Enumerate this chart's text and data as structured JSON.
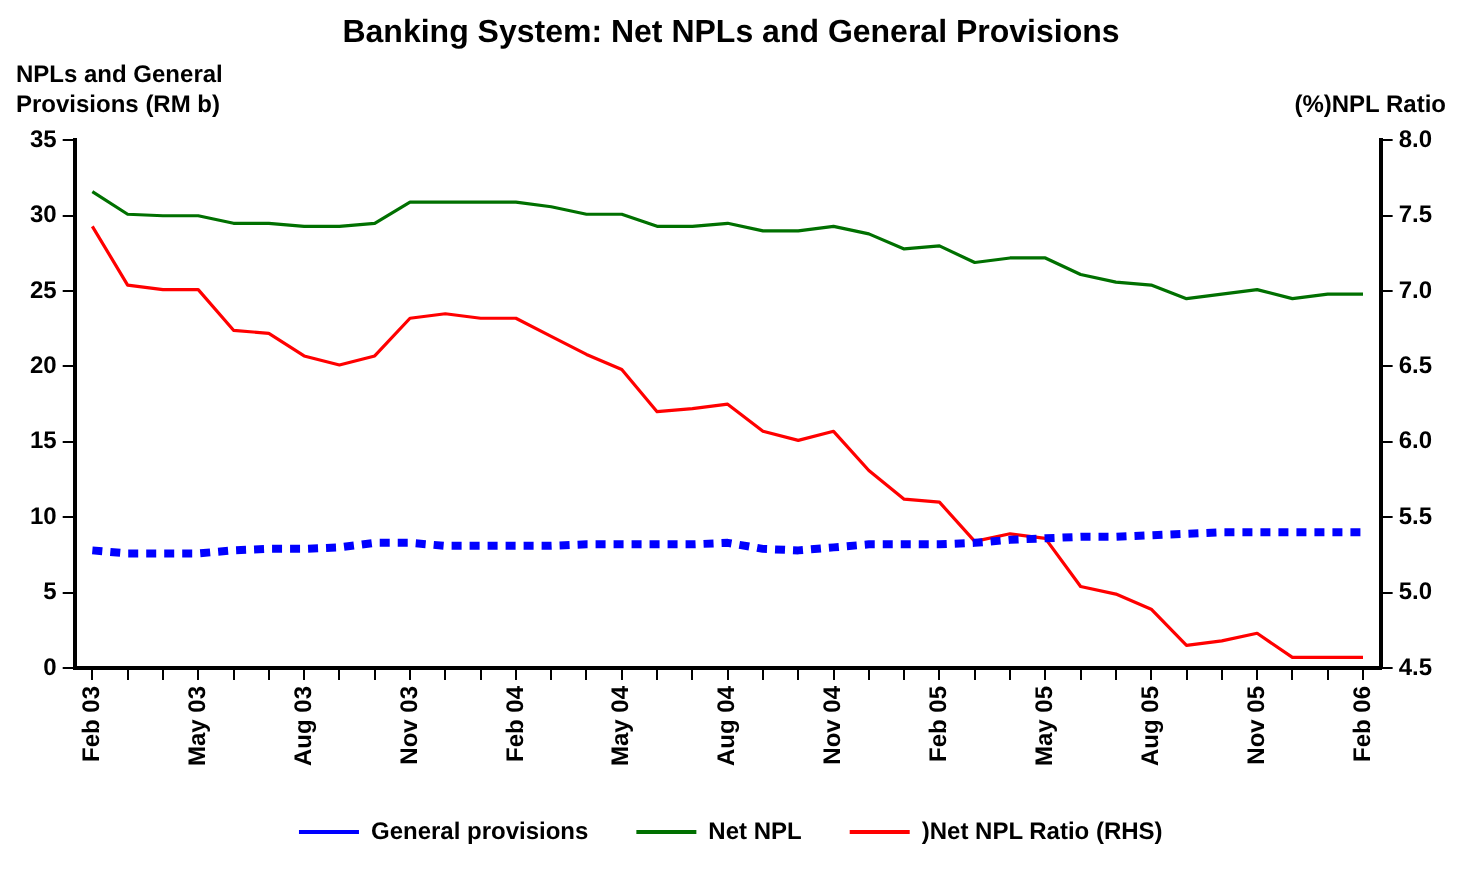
{
  "chart_data": {
    "type": "line",
    "title": "Banking System: Net NPLs and General Provisions",
    "ylabel": "NPLs and General Provisions (RM b)",
    "y2label": "(%)NPL Ratio",
    "categories": [
      "Feb 03",
      null,
      null,
      "May 03",
      null,
      null,
      "Aug 03",
      null,
      null,
      "Nov 03",
      null,
      null,
      "Feb 04",
      null,
      null,
      "May 04",
      null,
      null,
      "Aug 04",
      null,
      null,
      "Nov 04",
      null,
      null,
      "Feb 05",
      null,
      null,
      "May 05",
      null,
      null,
      "Aug 05",
      null,
      null,
      "Nov 05",
      null,
      null,
      "Feb 06"
    ],
    "series": [
      {
        "name": "General provisions",
        "color": "#0000ff",
        "line_style": "dashed",
        "values": [
          7.8,
          7.6,
          7.6,
          7.6,
          7.8,
          7.9,
          7.9,
          8.0,
          8.3,
          8.3,
          8.1,
          8.1,
          8.1,
          8.1,
          8.2,
          8.2,
          8.2,
          8.2,
          8.3,
          7.9,
          7.8,
          8.0,
          8.2,
          8.2,
          8.2,
          8.3,
          8.5,
          8.6,
          8.7,
          8.7,
          8.8,
          8.9,
          9.0,
          9.0,
          9.0,
          9.0,
          9.0
        ]
      },
      {
        "name": "Net NPL",
        "color": "#007000",
        "line_style": "solid",
        "values": [
          31.6,
          30.1,
          30.0,
          30.0,
          29.5,
          29.5,
          29.3,
          29.3,
          29.5,
          30.9,
          30.9,
          30.9,
          30.9,
          30.6,
          30.1,
          30.1,
          29.3,
          29.3,
          29.5,
          29.0,
          29.0,
          29.3,
          28.8,
          27.8,
          28.0,
          26.9,
          27.2,
          27.2,
          26.1,
          25.6,
          25.4,
          24.5,
          24.8,
          25.1,
          24.5,
          24.8,
          24.8
        ]
      },
      {
        "name": ")Net NPL Ratio (RHS)",
        "color": "#ff0000",
        "line_style": "solid",
        "axis": "y2",
        "values": [
          7.43,
          7.04,
          7.01,
          7.01,
          6.74,
          6.72,
          6.57,
          6.51,
          6.57,
          6.82,
          6.85,
          6.82,
          6.82,
          6.7,
          6.58,
          6.48,
          6.2,
          6.22,
          6.25,
          6.07,
          6.01,
          6.07,
          5.81,
          5.62,
          5.6,
          5.34,
          5.39,
          5.36,
          5.04,
          4.99,
          4.89,
          4.65,
          4.68,
          4.73,
          4.57,
          4.57,
          4.57
        ]
      }
    ],
    "ylim": [
      0,
      35
    ],
    "yticks": [
      0,
      5,
      10,
      15,
      20,
      25,
      30,
      35
    ],
    "y2lim": [
      4.5,
      8
    ],
    "y2ticks": [
      {
        "value": 4.5,
        "label": "4.5"
      },
      {
        "value": 5,
        "label": "5.0"
      },
      {
        "value": 5.5,
        "label": "5.5"
      },
      {
        "value": 6,
        "label": "6.0"
      },
      {
        "value": 6.5,
        "label": "6.5"
      },
      {
        "value": 7,
        "label": "7.0"
      },
      {
        "value": 7.5,
        "label": "7.5"
      },
      {
        "value": 8,
        "label": "8.0"
      }
    ],
    "grid": false,
    "legend": "bottom",
    "marker": "none"
  }
}
